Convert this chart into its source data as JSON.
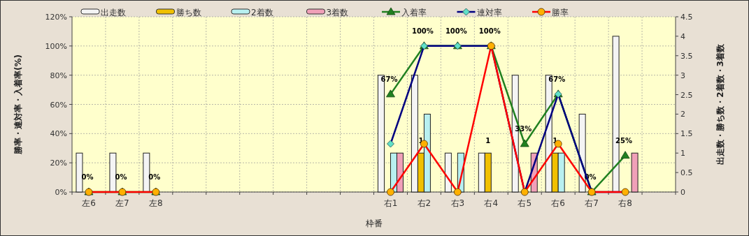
{
  "chart_data": {
    "type": "bar",
    "xlabel": "枠番",
    "ylabel": "勝率・連対率・入着率(%)",
    "y2label": "出走数・勝ち数・2着数・3着数",
    "categories": [
      "左6",
      "左7",
      "左8",
      null,
      null,
      null,
      null,
      null,
      null,
      "右1",
      "右2",
      "右3",
      "右4",
      "右5",
      "右6",
      "右7",
      "右8",
      null
    ],
    "series": [
      {
        "name": "出走数",
        "axis": "y2",
        "color": "#f4f4f4",
        "values": [
          1,
          1,
          1,
          null,
          null,
          null,
          null,
          null,
          null,
          3,
          3,
          1,
          1,
          3,
          3,
          2,
          4,
          null
        ]
      },
      {
        "name": "勝ち数",
        "axis": "y2",
        "color": "#f0c000",
        "values": [
          0,
          0,
          0,
          null,
          null,
          null,
          null,
          null,
          null,
          0,
          1,
          0,
          1,
          0,
          1,
          0,
          0,
          null
        ],
        "value_labels": [
          null,
          null,
          null,
          null,
          null,
          null,
          null,
          null,
          null,
          null,
          "1",
          null,
          "1",
          null,
          "1",
          null,
          null,
          null
        ]
      },
      {
        "name": "2着数",
        "axis": "y2",
        "color": "#b8f0f0",
        "values": [
          0,
          0,
          0,
          null,
          null,
          null,
          null,
          null,
          null,
          1,
          2,
          1,
          0,
          0,
          1,
          0,
          0,
          null
        ]
      },
      {
        "name": "3着数",
        "axis": "y2",
        "color": "#f0a0b8",
        "values": [
          0,
          0,
          0,
          null,
          null,
          null,
          null,
          null,
          null,
          1,
          0,
          0,
          0,
          1,
          0,
          0,
          1,
          null
        ]
      },
      {
        "name": "入着率",
        "type": "line",
        "color": "#208020",
        "marker": "triangle",
        "values": [
          0,
          0,
          0,
          null,
          null,
          null,
          null,
          null,
          null,
          67,
          100,
          100,
          100,
          33,
          67,
          0,
          25,
          null
        ],
        "value_labels": [
          "0%",
          "0%",
          "0%",
          null,
          null,
          null,
          null,
          null,
          null,
          "67%",
          "100%",
          "100%",
          "100%",
          "33%",
          "67%",
          "0%",
          "25%",
          null
        ]
      },
      {
        "name": "連対率",
        "type": "line",
        "color": "#000080",
        "marker": "diamond",
        "values": [
          null,
          null,
          null,
          null,
          null,
          null,
          null,
          null,
          null,
          33,
          100,
          100,
          100,
          0,
          67,
          0,
          0,
          null
        ]
      },
      {
        "name": "勝率",
        "type": "line",
        "color": "#ff0000",
        "marker": "circle",
        "values": [
          0,
          0,
          0,
          null,
          null,
          null,
          null,
          null,
          null,
          0,
          33,
          0,
          100,
          0,
          33,
          0,
          0,
          null
        ]
      }
    ],
    "ylim": [
      0,
      120
    ],
    "yticks": [
      {
        "value": 0,
        "label": "0%"
      },
      {
        "value": 20,
        "label": "20%"
      },
      {
        "value": 40,
        "label": "40%"
      },
      {
        "value": 60,
        "label": "60%"
      },
      {
        "value": 80,
        "label": "80%"
      },
      {
        "value": 100,
        "label": "100%"
      },
      {
        "value": 120,
        "label": "120%"
      }
    ],
    "y2lim": [
      0,
      4.5
    ],
    "y2ticks": [
      0,
      0.5,
      1,
      1.5,
      2,
      2.5,
      3,
      3.5,
      4,
      4.5
    ],
    "grid": true,
    "legend": "top"
  }
}
